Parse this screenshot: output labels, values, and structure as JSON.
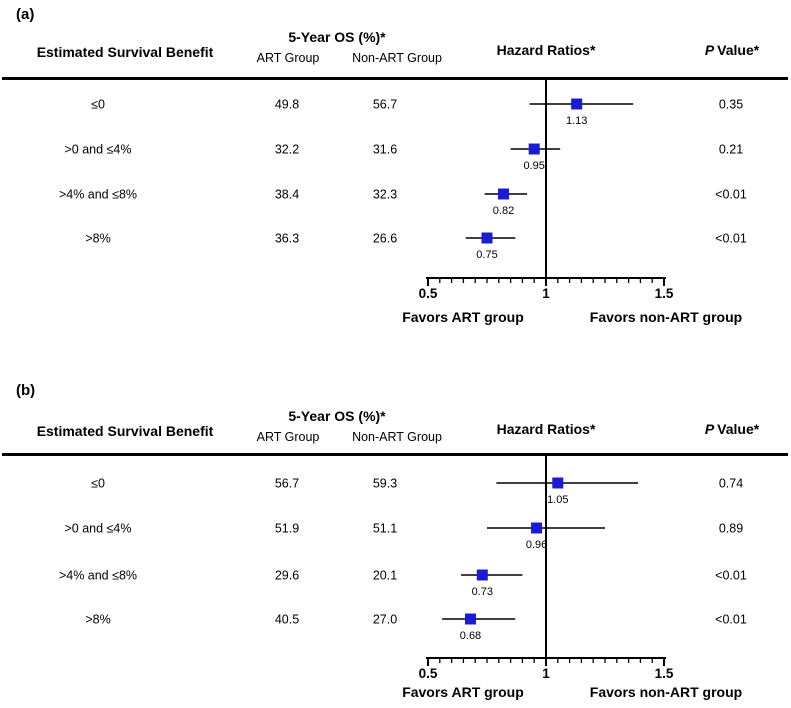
{
  "headers": {
    "benefit": "Estimated Survival Benefit",
    "os_title": "5-Year OS (%)*",
    "art_group": "ART Group",
    "non_art_group": "Non-ART Group",
    "hazard_ratios": "Hazard Ratios*",
    "p_italic": "P",
    "p_rest": "Value*"
  },
  "colors": {
    "marker": "#1b1bd6",
    "axis": "#000000",
    "text": "#000000"
  },
  "chart_data": [
    {
      "type": "scatter",
      "panel_label": "(a)",
      "title": "Hazard Ratios*",
      "xlim": [
        0.5,
        1.5
      ],
      "xticks": [
        0.5,
        1,
        1.5
      ],
      "xtick_labels": [
        "0.5",
        "1",
        "1.5"
      ],
      "minor_tick_step": 0.05,
      "reference_line_x": 1,
      "favors_left": "Favors ART group",
      "favors_right": "Favors non-ART group",
      "rows": [
        {
          "category": "≤0",
          "art_os": "49.8",
          "non_art_os": "56.7",
          "hr": 1.13,
          "hr_label": "1.13",
          "ci": [
            0.93,
            1.37
          ],
          "p_value": "0.35"
        },
        {
          "category": ">0 and ≤4%",
          "art_os": "32.2",
          "non_art_os": "31.6",
          "hr": 0.95,
          "hr_label": "0.95",
          "ci": [
            0.85,
            1.06
          ],
          "p_value": "0.21"
        },
        {
          "category": ">4% and ≤8%",
          "art_os": "38.4",
          "non_art_os": "32.3",
          "hr": 0.82,
          "hr_label": "0.82",
          "ci": [
            0.74,
            0.92
          ],
          "p_value": "<0.01"
        },
        {
          "category": ">8%",
          "art_os": "36.3",
          "non_art_os": "26.6",
          "hr": 0.75,
          "hr_label": "0.75",
          "ci": [
            0.66,
            0.87
          ],
          "p_value": "<0.01"
        }
      ]
    },
    {
      "type": "scatter",
      "panel_label": "(b)",
      "title": "Hazard Ratios*",
      "xlim": [
        0.5,
        1.5
      ],
      "xticks": [
        0.5,
        1,
        1.5
      ],
      "xtick_labels": [
        "0.5",
        "1",
        "1.5"
      ],
      "minor_tick_step": 0.05,
      "reference_line_x": 1,
      "favors_left": "Favors ART group",
      "favors_right": "Favors non-ART group",
      "rows": [
        {
          "category": "≤0",
          "art_os": "56.7",
          "non_art_os": "59.3",
          "hr": 1.05,
          "hr_label": "1.05",
          "ci": [
            0.79,
            1.39
          ],
          "p_value": "0.74"
        },
        {
          "category": ">0 and ≤4%",
          "art_os": "51.9",
          "non_art_os": "51.1",
          "hr": 0.96,
          "hr_label": "0.96",
          "ci": [
            0.75,
            1.25
          ],
          "p_value": "0.89"
        },
        {
          "category": ">4% and ≤8%",
          "art_os": "29.6",
          "non_art_os": "20.1",
          "hr": 0.73,
          "hr_label": "0.73",
          "ci": [
            0.64,
            0.9
          ],
          "p_value": "<0.01"
        },
        {
          "category": ">8%",
          "art_os": "40.5",
          "non_art_os": "27.0",
          "hr": 0.68,
          "hr_label": "0.68",
          "ci": [
            0.56,
            0.87
          ],
          "p_value": "<0.01"
        }
      ]
    }
  ]
}
